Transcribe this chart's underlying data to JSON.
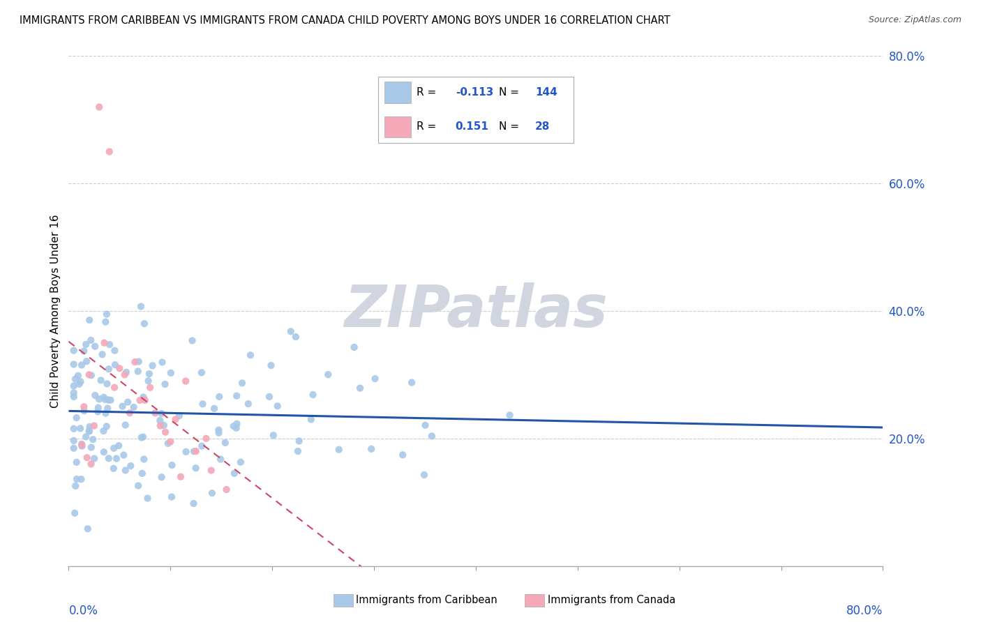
{
  "title": "IMMIGRANTS FROM CARIBBEAN VS IMMIGRANTS FROM CANADA CHILD POVERTY AMONG BOYS UNDER 16 CORRELATION CHART",
  "source": "Source: ZipAtlas.com",
  "ylabel": "Child Poverty Among Boys Under 16",
  "xlim": [
    0,
    0.8
  ],
  "ylim": [
    0,
    0.8
  ],
  "ytick_vals": [
    0.2,
    0.4,
    0.6,
    0.8
  ],
  "ytick_labels": [
    "20.0%",
    "40.0%",
    "60.0%",
    "80.0%"
  ],
  "blue_R": -0.113,
  "blue_N": 144,
  "pink_R": 0.151,
  "pink_N": 28,
  "blue_color": "#a8c8e8",
  "pink_color": "#f4a8b8",
  "blue_line_color": "#2255aa",
  "pink_line_color": "#cc4466",
  "text_blue_color": "#2255cc",
  "watermark": "ZIPatlas",
  "watermark_color": "#d0d5e0",
  "label_blue": "Immigrants from Caribbean",
  "label_pink": "Immigrants from Canada"
}
